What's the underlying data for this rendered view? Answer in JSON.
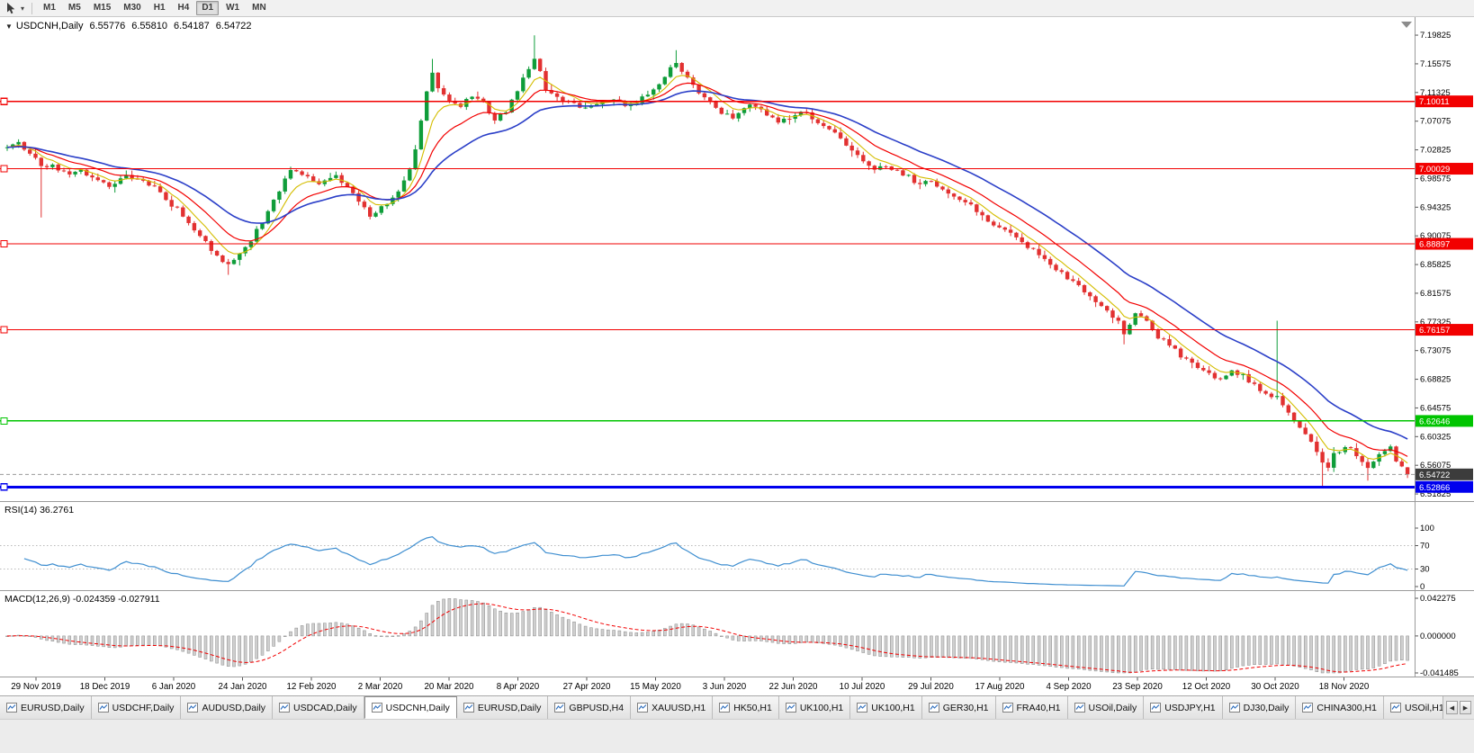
{
  "window": {
    "title": "USDCNH,Daily"
  },
  "toolbar": {
    "timeframes": [
      "M1",
      "M5",
      "M15",
      "M30",
      "H1",
      "H4",
      "D1",
      "W1",
      "MN"
    ],
    "active_timeframe": "D1",
    "dropdown_icon": "▾"
  },
  "chart_header": {
    "collapse_icon": "▼",
    "symbol": "USDCNH,Daily",
    "open": "6.55776",
    "high": "6.55810",
    "low": "6.54187",
    "close": "6.54722"
  },
  "price_axis": {
    "labels": [
      "7.19825",
      "7.15575",
      "7.11325",
      "7.07075",
      "7.02825",
      "6.98575",
      "6.94325",
      "6.90075",
      "6.85825",
      "6.81575",
      "6.77325",
      "6.73075",
      "6.68825",
      "6.64575",
      "6.60325",
      "6.56075",
      "6.51825"
    ]
  },
  "price_lines": [
    {
      "price": 7.10011,
      "label": "7.10011",
      "color": "#f20000",
      "width": 1.2
    },
    {
      "price": 7.00029,
      "label": "7.00029",
      "color": "#f20000",
      "width": 1.2
    },
    {
      "price": 6.88897,
      "label": "6.88897",
      "color": "#f20000",
      "width": 1.2
    },
    {
      "price": 6.76157,
      "label": "6.76157",
      "color": "#f20000",
      "width": 1.2
    },
    {
      "price": 6.62646,
      "label": "6.62646",
      "color": "#00c400",
      "width": 1.6
    },
    {
      "price": 6.52866,
      "label": "6.52866",
      "color": "#0000ee",
      "width": 3
    }
  ],
  "bid_line": {
    "price": 6.54722,
    "label": "6.54722",
    "badge_color": "#3c3c3c",
    "line_color": "#9a9a9a"
  },
  "rsi_panel": {
    "name": "RSI(14)",
    "value": "36.2761",
    "axis_labels": [
      {
        "v": 100,
        "label": "100"
      },
      {
        "v": 70,
        "label": "70"
      },
      {
        "v": 30,
        "label": "30"
      },
      {
        "v": 0,
        "label": "0"
      }
    ],
    "levels": [
      70,
      30
    ],
    "line_color": "#3e8ed0"
  },
  "macd_panel": {
    "name": "MACD(12,26,9)",
    "macd_value": "-0.024359",
    "signal_value": "-0.027911",
    "axis_labels": [
      {
        "v": 0.042275,
        "label": "0.042275"
      },
      {
        "v": 0,
        "label": "0.000000"
      },
      {
        "v": -0.041485,
        "label": "-0.041485"
      }
    ],
    "histogram_color": "#cfcfcf",
    "histogram_border": "#8a8a8a",
    "signal_color": "#f20000"
  },
  "date_axis": {
    "labels": [
      "29 Nov 2019",
      "18 Dec 2019",
      "6 Jan 2020",
      "24 Jan 2020",
      "12 Feb 2020",
      "2 Mar 2020",
      "20 Mar 2020",
      "8 Apr 2020",
      "27 Apr 2020",
      "15 May 2020",
      "3 Jun 2020",
      "22 Jun 2020",
      "10 Jul 2020",
      "29 Jul 2020",
      "17 Aug 2020",
      "4 Sep 2020",
      "23 Sep 2020",
      "12 Oct 2020",
      "30 Oct 2020",
      "18 Nov 2020"
    ]
  },
  "tabs": {
    "active_index": 4,
    "items": [
      "EURUSD,Daily",
      "USDCHF,Daily",
      "AUDUSD,Daily",
      "USDCAD,Daily",
      "USDCNH,Daily",
      "EURUSD,Daily",
      "GBPUSD,H4",
      "XAUUSD,H1",
      "HK50,H1",
      "UK100,H1",
      "UK100,H1",
      "GER30,H1",
      "FRA40,H1",
      "USOil,Daily",
      "USDJPY,H1",
      "DJ30,Daily",
      "CHINA300,H1",
      "USOil,H1"
    ]
  },
  "chart_data": {
    "type": "candlestick",
    "symbol": "USDCNH",
    "timeframe": "Daily",
    "x_range": [
      "29 Nov 2019",
      "18 Nov 2020"
    ],
    "y_range": [
      6.505,
      7.225
    ],
    "num_bars": 248,
    "up_color": "#0f9d3a",
    "down_color": "#e23131",
    "last_bar": {
      "open": 6.55776,
      "high": 6.5581,
      "low": 6.54187,
      "close": 6.54722
    },
    "price_waypoints": [
      [
        0,
        7.032
      ],
      [
        2,
        7.04
      ],
      [
        4,
        7.022
      ],
      [
        6,
        7.006
      ],
      [
        8,
        7.004
      ],
      [
        11,
        6.995
      ],
      [
        13,
        6.997
      ],
      [
        16,
        6.984
      ],
      [
        18,
        6.976
      ],
      [
        21,
        6.99
      ],
      [
        23,
        6.986
      ],
      [
        26,
        6.972
      ],
      [
        28,
        6.954
      ],
      [
        30,
        6.94
      ],
      [
        33,
        6.91
      ],
      [
        35,
        6.892
      ],
      [
        37,
        6.87
      ],
      [
        39,
        6.858
      ],
      [
        41,
        6.874
      ],
      [
        43,
        6.894
      ],
      [
        45,
        6.922
      ],
      [
        47,
        6.952
      ],
      [
        49,
        6.986
      ],
      [
        50,
        7.0
      ],
      [
        52,
        6.994
      ],
      [
        54,
        6.98
      ],
      [
        56,
        6.98
      ],
      [
        58,
        6.992
      ],
      [
        60,
        6.972
      ],
      [
        62,
        6.95
      ],
      [
        64,
        6.932
      ],
      [
        66,
        6.942
      ],
      [
        68,
        6.958
      ],
      [
        70,
        6.982
      ],
      [
        71,
        7.002
      ],
      [
        72,
        7.032
      ],
      [
        73,
        7.075
      ],
      [
        74,
        7.118
      ],
      [
        75,
        7.14
      ],
      [
        76,
        7.122
      ],
      [
        78,
        7.1
      ],
      [
        80,
        7.095
      ],
      [
        82,
        7.108
      ],
      [
        84,
        7.1
      ],
      [
        86,
        7.072
      ],
      [
        88,
        7.085
      ],
      [
        90,
        7.118
      ],
      [
        91,
        7.132
      ],
      [
        93,
        7.165
      ],
      [
        95,
        7.12
      ],
      [
        97,
        7.108
      ],
      [
        99,
        7.1
      ],
      [
        101,
        7.09
      ],
      [
        103,
        7.094
      ],
      [
        105,
        7.1
      ],
      [
        107,
        7.106
      ],
      [
        109,
        7.094
      ],
      [
        111,
        7.1
      ],
      [
        113,
        7.112
      ],
      [
        115,
        7.126
      ],
      [
        117,
        7.15
      ],
      [
        118,
        7.158
      ],
      [
        120,
        7.134
      ],
      [
        122,
        7.112
      ],
      [
        124,
        7.098
      ],
      [
        126,
        7.082
      ],
      [
        128,
        7.078
      ],
      [
        130,
        7.09
      ],
      [
        132,
        7.094
      ],
      [
        134,
        7.076
      ],
      [
        136,
        7.07
      ],
      [
        139,
        7.08
      ],
      [
        141,
        7.084
      ],
      [
        143,
        7.07
      ],
      [
        145,
        7.06
      ],
      [
        147,
        7.044
      ],
      [
        149,
        7.03
      ],
      [
        151,
        7.014
      ],
      [
        153,
        7.0
      ],
      [
        155,
        7.006
      ],
      [
        157,
        6.996
      ],
      [
        159,
        6.988
      ],
      [
        161,
        6.976
      ],
      [
        163,
        6.984
      ],
      [
        165,
        6.97
      ],
      [
        167,
        6.962
      ],
      [
        169,
        6.95
      ],
      [
        171,
        6.938
      ],
      [
        173,
        6.922
      ],
      [
        175,
        6.912
      ],
      [
        177,
        6.902
      ],
      [
        179,
        6.89
      ],
      [
        181,
        6.878
      ],
      [
        183,
        6.864
      ],
      [
        185,
        6.852
      ],
      [
        186,
        6.845
      ],
      [
        188,
        6.832
      ],
      [
        190,
        6.818
      ],
      [
        192,
        6.804
      ],
      [
        194,
        6.79
      ],
      [
        196,
        6.772
      ],
      [
        197,
        6.756
      ],
      [
        199,
        6.784
      ],
      [
        201,
        6.775
      ],
      [
        203,
        6.752
      ],
      [
        205,
        6.738
      ],
      [
        207,
        6.724
      ],
      [
        209,
        6.712
      ],
      [
        211,
        6.7
      ],
      [
        213,
        6.69
      ],
      [
        215,
        6.692
      ],
      [
        216,
        6.702
      ],
      [
        218,
        6.694
      ],
      [
        220,
        6.678
      ],
      [
        222,
        6.668
      ],
      [
        224,
        6.66
      ],
      [
        226,
        6.638
      ],
      [
        228,
        6.615
      ],
      [
        230,
        6.598
      ],
      [
        231,
        6.584
      ],
      [
        232,
        6.566
      ],
      [
        233,
        6.558
      ],
      [
        234,
        6.576
      ],
      [
        236,
        6.59
      ],
      [
        238,
        6.576
      ],
      [
        240,
        6.56
      ],
      [
        242,
        6.574
      ],
      [
        244,
        6.586
      ],
      [
        245,
        6.568
      ],
      [
        246,
        6.556
      ],
      [
        247,
        6.5472
      ]
    ],
    "spikes": [
      {
        "i": 6,
        "low": 6.928
      },
      {
        "i": 39,
        "low": 6.843
      },
      {
        "i": 75,
        "high": 7.163
      },
      {
        "i": 93,
        "high": 7.198
      },
      {
        "i": 118,
        "high": 7.176
      },
      {
        "i": 197,
        "low": 6.74
      },
      {
        "i": 224,
        "high": 6.775
      },
      {
        "i": 232,
        "low": 6.5295
      },
      {
        "i": 240,
        "low": 6.538
      }
    ],
    "moving_averages": [
      {
        "period": 6,
        "color": "#d4bd00",
        "width": 1.1,
        "name": "ma-fast-yellow"
      },
      {
        "period": 13,
        "color": "#f20000",
        "width": 1.2,
        "name": "ma-mid-red"
      },
      {
        "period": 26,
        "color": "#2b3fc8",
        "width": 1.6,
        "name": "ma-slow-blue"
      }
    ],
    "indicators": [
      {
        "name": "RSI",
        "period": 14,
        "last_value": 36.2761
      },
      {
        "name": "MACD",
        "fast": 12,
        "slow": 26,
        "signal": 9,
        "last_macd": -0.024359,
        "last_signal": -0.027911
      }
    ]
  }
}
